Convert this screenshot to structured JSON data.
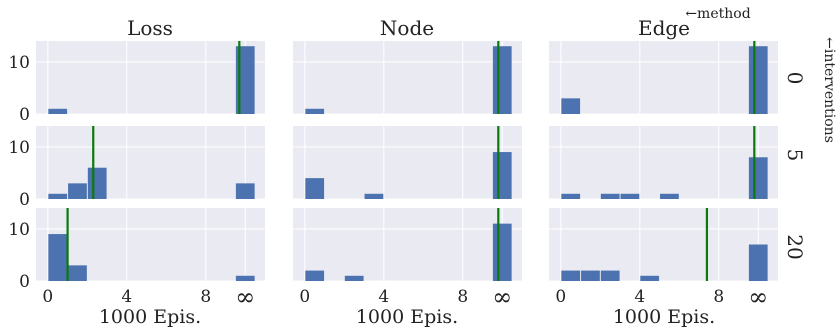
{
  "chart_data": {
    "type": "bar",
    "layout": "facet-grid",
    "col_header_title": "←method",
    "row_header_title": "←interventions",
    "columns": [
      "Loss",
      "Node",
      "Edge"
    ],
    "rows": [
      "0",
      "5",
      "20"
    ],
    "xlabel": "1000 Epis.",
    "x_ticks": [
      "0",
      "4",
      "8",
      "∞"
    ],
    "xlim": [
      -0.6,
      11.0
    ],
    "ylim": [
      0,
      14
    ],
    "y_ticks": [
      "0",
      "10"
    ],
    "bar_width": 0.95,
    "infinity_position": 10.0,
    "bar_color": "#4c72b0",
    "line_color": "#0a7a0a",
    "background": "#eaeaf2",
    "grid": true,
    "panels": [
      {
        "method": "Loss",
        "interventions": "0",
        "bars": [
          {
            "x": 0.5,
            "count": 1
          },
          {
            "x": 10,
            "count": 13
          }
        ],
        "vline": 9.7
      },
      {
        "method": "Node",
        "interventions": "0",
        "bars": [
          {
            "x": 0.5,
            "count": 1
          },
          {
            "x": 10,
            "count": 13
          }
        ],
        "vline": 9.8
      },
      {
        "method": "Edge",
        "interventions": "0",
        "bars": [
          {
            "x": 0.5,
            "count": 3
          },
          {
            "x": 10,
            "count": 13
          }
        ],
        "vline": 9.8
      },
      {
        "method": "Loss",
        "interventions": "5",
        "bars": [
          {
            "x": 0.5,
            "count": 1
          },
          {
            "x": 1.5,
            "count": 3
          },
          {
            "x": 2.5,
            "count": 6
          },
          {
            "x": 10,
            "count": 3
          }
        ],
        "vline": 2.3
      },
      {
        "method": "Node",
        "interventions": "5",
        "bars": [
          {
            "x": 0.5,
            "count": 4
          },
          {
            "x": 3.5,
            "count": 1
          },
          {
            "x": 10,
            "count": 9
          }
        ],
        "vline": 9.8
      },
      {
        "method": "Edge",
        "interventions": "5",
        "bars": [
          {
            "x": 0.5,
            "count": 1
          },
          {
            "x": 2.5,
            "count": 1
          },
          {
            "x": 3.5,
            "count": 1
          },
          {
            "x": 5.5,
            "count": 1
          },
          {
            "x": 10,
            "count": 8
          }
        ],
        "vline": 9.8
      },
      {
        "method": "Loss",
        "interventions": "20",
        "bars": [
          {
            "x": 0.5,
            "count": 9
          },
          {
            "x": 1.5,
            "count": 3
          },
          {
            "x": 10,
            "count": 1
          }
        ],
        "vline": 1.0
      },
      {
        "method": "Node",
        "interventions": "20",
        "bars": [
          {
            "x": 0.5,
            "count": 2
          },
          {
            "x": 2.5,
            "count": 1
          },
          {
            "x": 10,
            "count": 11
          }
        ],
        "vline": 9.8
      },
      {
        "method": "Edge",
        "interventions": "20",
        "bars": [
          {
            "x": 0.5,
            "count": 2
          },
          {
            "x": 1.5,
            "count": 2
          },
          {
            "x": 2.5,
            "count": 2
          },
          {
            "x": 4.5,
            "count": 1
          },
          {
            "x": 10,
            "count": 7
          }
        ],
        "vline": 7.4
      }
    ]
  }
}
